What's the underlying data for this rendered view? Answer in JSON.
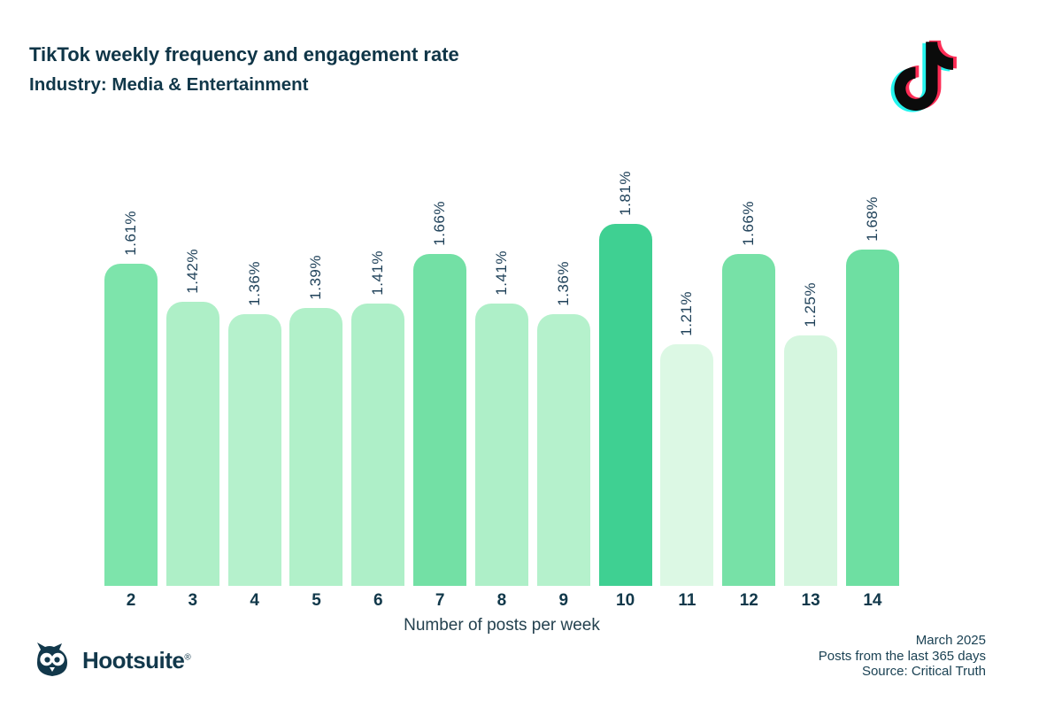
{
  "header": {
    "title": "TikTok weekly frequency and engagement rate",
    "subtitle": "Industry: Media & Entertainment"
  },
  "brand": {
    "tiktok_icon": "tiktok-note-logo",
    "hootsuite_wordmark": "Hootsuite",
    "hootsuite_registered": "®",
    "tiktok_cyan": "#25f4ee",
    "tiktok_pink": "#fe2c55",
    "tiktok_black": "#0b0b0b",
    "dark_teal": "#11384a"
  },
  "chart_data": {
    "type": "bar",
    "title": "TikTok weekly frequency and engagement rate",
    "subtitle": "Industry: Media & Entertainment",
    "categories": [
      "2",
      "3",
      "4",
      "5",
      "6",
      "7",
      "8",
      "9",
      "10",
      "11",
      "12",
      "13",
      "14"
    ],
    "values": [
      1.61,
      1.42,
      1.36,
      1.39,
      1.41,
      1.66,
      1.41,
      1.36,
      1.81,
      1.21,
      1.66,
      1.25,
      1.68
    ],
    "labels": [
      "1.61%",
      "1.42%",
      "1.36%",
      "1.39%",
      "1.41%",
      "1.66%",
      "1.41%",
      "1.36%",
      "1.81%",
      "1.21%",
      "1.66%",
      "1.25%",
      "1.68%"
    ],
    "colors": [
      "#7de4ab",
      "#aeefc7",
      "#b5f1cc",
      "#b1f0c9",
      "#aeefc8",
      "#73e0a5",
      "#aeefc8",
      "#b5f1cc",
      "#3fd092",
      "#dcf8e4",
      "#77e1a7",
      "#d5f6df",
      "#6edfa2"
    ],
    "xlabel": "Number of posts per week",
    "ylabel": "",
    "ylim": [
      0,
      1.81
    ],
    "grid": false,
    "legend": false,
    "value_labels_rotated": true
  },
  "footer": {
    "meta_lines": [
      "March 2025",
      "Posts from the last 365 days",
      "Source: Critical Truth"
    ]
  }
}
